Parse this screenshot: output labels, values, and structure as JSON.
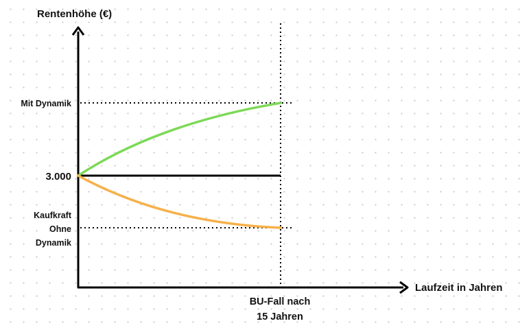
{
  "chart_data": {
    "type": "line",
    "ylabel": "Rentenhöhe (€)",
    "xlabel": "Laufzeit in Jahren",
    "x_marker": {
      "label_line1": "BU-Fall nach",
      "label_line2": "15 Jahren"
    },
    "y_tick_labels": {
      "top": "Mit Dynamik",
      "middle": "3.000",
      "bottom_line1": "Kaufkraft",
      "bottom_line2": "Ohne",
      "bottom_line3": "Dynamik"
    },
    "series": [
      {
        "key": "with_dynamics",
        "color": "#7dd957",
        "shape": "concave-rising"
      },
      {
        "key": "baseline",
        "color": "#000000",
        "shape": "flat"
      },
      {
        "key": "purchasing_power",
        "color": "#f6b14b",
        "shape": "convex-falling"
      }
    ],
    "grid": false
  }
}
